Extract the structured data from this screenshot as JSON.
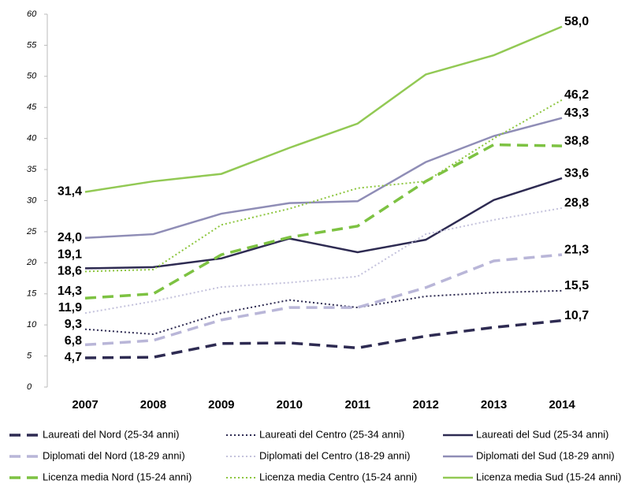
{
  "chart_data": {
    "type": "line",
    "categories": [
      "2007",
      "2008",
      "2009",
      "2010",
      "2011",
      "2012",
      "2013",
      "2014"
    ],
    "ylim": [
      0,
      60
    ],
    "yticks": [
      0,
      5,
      10,
      15,
      20,
      25,
      30,
      35,
      40,
      45,
      50,
      55,
      60
    ],
    "series": [
      {
        "name": "Laureati del Nord (25-34 anni)",
        "color": "#2e2b52",
        "style": "dashed",
        "values": [
          4.7,
          4.8,
          7.0,
          7.1,
          6.3,
          8.2,
          9.6,
          10.7
        ],
        "value_labels": [
          "4,7",
          null,
          null,
          null,
          null,
          null,
          null,
          "10,7"
        ]
      },
      {
        "name": "Laureati del Centro (25-34 anni)",
        "color": "#2e2b52",
        "style": "dotted",
        "values": [
          9.3,
          8.5,
          11.9,
          14.0,
          12.8,
          14.6,
          15.2,
          15.5
        ],
        "value_labels": [
          "9,3",
          null,
          null,
          null,
          null,
          null,
          null,
          "15,5"
        ]
      },
      {
        "name": "Laureati del Sud (25-34 anni)",
        "color": "#2e2b52",
        "style": "solid",
        "values": [
          19.1,
          19.3,
          20.7,
          23.9,
          21.7,
          23.7,
          30.1,
          33.6
        ],
        "value_labels": [
          "19,1",
          null,
          null,
          null,
          null,
          null,
          null,
          "33,6"
        ]
      },
      {
        "name": "Diplomati del Nord (18-29 anni)",
        "color": "#b9b6d8",
        "style": "dashed",
        "values": [
          6.8,
          7.5,
          10.8,
          12.8,
          12.8,
          16.0,
          20.3,
          21.3
        ],
        "value_labels": [
          "6,8",
          null,
          null,
          null,
          null,
          null,
          null,
          "21,3"
        ]
      },
      {
        "name": "Diplomati del Centro (18-29 anni)",
        "color": "#c4c2dc",
        "style": "dotted",
        "values": [
          11.9,
          13.8,
          16.1,
          16.8,
          17.8,
          24.6,
          26.9,
          28.8
        ],
        "value_labels": [
          "11,9",
          null,
          null,
          null,
          null,
          null,
          null,
          "28,8"
        ]
      },
      {
        "name": "Diplomati del Sud (18-29 anni)",
        "color": "#8f8db6",
        "style": "solid",
        "values": [
          24.0,
          24.6,
          27.9,
          29.6,
          29.9,
          36.2,
          40.4,
          43.3
        ],
        "value_labels": [
          "24,0",
          null,
          null,
          null,
          null,
          null,
          null,
          "43,3"
        ]
      },
      {
        "name": "Licenza media Nord (15-24 anni)",
        "color": "#7dc242",
        "style": "dashed",
        "values": [
          14.3,
          15.0,
          21.3,
          24.1,
          25.9,
          33.1,
          39.0,
          38.8
        ],
        "value_labels": [
          "14,3",
          null,
          null,
          null,
          null,
          null,
          null,
          "38,8"
        ]
      },
      {
        "name": "Licenza media Centro (15-24 anni)",
        "color": "#8dc63f",
        "style": "dotted",
        "values": [
          18.6,
          18.9,
          26.1,
          28.7,
          32.0,
          33.1,
          40.0,
          46.2
        ],
        "value_labels": [
          "18,6",
          null,
          null,
          null,
          null,
          null,
          null,
          "46,2"
        ]
      },
      {
        "name": "Licenza media Sud (15-24 anni)",
        "color": "#92c954",
        "style": "solid",
        "values": [
          31.4,
          33.1,
          34.3,
          38.5,
          42.4,
          50.3,
          53.4,
          58.0
        ],
        "value_labels": [
          "31,4",
          null,
          null,
          null,
          null,
          null,
          null,
          "58,0"
        ]
      }
    ]
  }
}
